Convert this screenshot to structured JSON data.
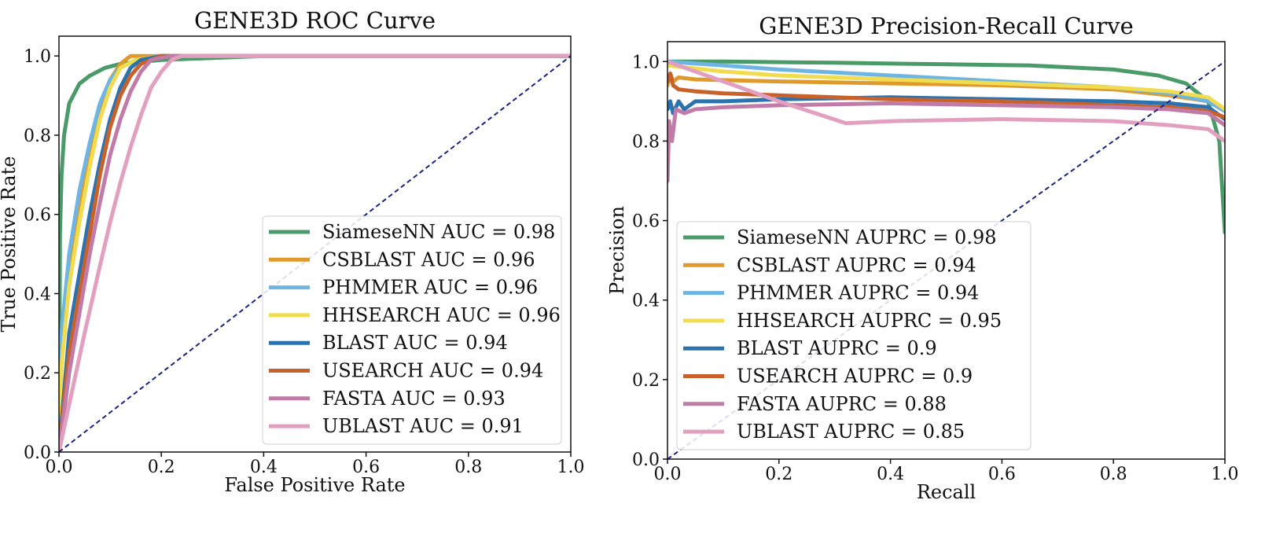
{
  "chart_data": [
    {
      "type": "line",
      "title": "GENE3D ROC Curve",
      "xlabel": "False Positive Rate",
      "ylabel": "True Positive Rate",
      "xlim": [
        0,
        1
      ],
      "ylim": [
        0,
        1.05
      ],
      "xticks": [
        "0.0",
        "0.2",
        "0.4",
        "0.6",
        "0.8",
        "1.0"
      ],
      "yticks": [
        "0.0",
        "0.2",
        "0.4",
        "0.6",
        "0.8",
        "1.0"
      ],
      "grid": false,
      "legend_position": "lower-right",
      "series": [
        {
          "name": "SiameseNN",
          "legend": "SiameseNN AUC = 0.98",
          "color": "#4a9a6a",
          "x": [
            0,
            0.002,
            0.005,
            0.01,
            0.02,
            0.04,
            0.06,
            0.09,
            0.12,
            0.2,
            0.4,
            1.0
          ],
          "y": [
            0,
            0.55,
            0.7,
            0.8,
            0.88,
            0.93,
            0.95,
            0.97,
            0.98,
            0.99,
            1.0,
            1.0
          ]
        },
        {
          "name": "CSBLAST",
          "legend": "CSBLAST AUC = 0.96",
          "color": "#e09a2c",
          "x": [
            0,
            0.005,
            0.02,
            0.04,
            0.06,
            0.08,
            0.1,
            0.12,
            0.14,
            0.2,
            1.0
          ],
          "y": [
            0,
            0.25,
            0.45,
            0.62,
            0.76,
            0.87,
            0.94,
            0.98,
            1.0,
            1.0,
            1.0
          ]
        },
        {
          "name": "PHMMER",
          "legend": "PHMMER AUC = 0.96",
          "color": "#6fb5e4",
          "x": [
            0,
            0.005,
            0.02,
            0.04,
            0.06,
            0.08,
            0.1,
            0.12,
            0.15,
            0.2,
            1.0
          ],
          "y": [
            0,
            0.3,
            0.5,
            0.66,
            0.78,
            0.88,
            0.94,
            0.97,
            0.99,
            1.0,
            1.0
          ]
        },
        {
          "name": "HHSEARCH",
          "legend": "HHSEARCH AUC = 0.96",
          "color": "#f0dc4e",
          "x": [
            0,
            0.005,
            0.02,
            0.04,
            0.06,
            0.08,
            0.1,
            0.12,
            0.15,
            0.2,
            1.0
          ],
          "y": [
            0,
            0.22,
            0.42,
            0.58,
            0.72,
            0.84,
            0.92,
            0.97,
            0.99,
            1.0,
            1.0
          ]
        },
        {
          "name": "BLAST",
          "legend": "BLAST AUC = 0.94",
          "color": "#2b73ae",
          "x": [
            0,
            0.02,
            0.04,
            0.06,
            0.08,
            0.1,
            0.12,
            0.14,
            0.16,
            0.2,
            1.0
          ],
          "y": [
            0,
            0.3,
            0.45,
            0.6,
            0.73,
            0.84,
            0.92,
            0.97,
            0.99,
            1.0,
            1.0
          ]
        },
        {
          "name": "USEARCH",
          "legend": "USEARCH AUC = 0.94",
          "color": "#c9622a",
          "x": [
            0,
            0.02,
            0.04,
            0.06,
            0.08,
            0.1,
            0.12,
            0.14,
            0.16,
            0.2,
            1.0
          ],
          "y": [
            0,
            0.25,
            0.4,
            0.55,
            0.7,
            0.82,
            0.9,
            0.95,
            0.98,
            1.0,
            1.0
          ]
        },
        {
          "name": "FASTA",
          "legend": "FASTA AUC = 0.93",
          "color": "#c07ba8",
          "x": [
            0,
            0.02,
            0.04,
            0.06,
            0.08,
            0.1,
            0.12,
            0.14,
            0.16,
            0.18,
            0.22,
            1.0
          ],
          "y": [
            0,
            0.2,
            0.35,
            0.5,
            0.63,
            0.75,
            0.84,
            0.91,
            0.96,
            0.99,
            1.0,
            1.0
          ]
        },
        {
          "name": "UBLAST",
          "legend": "UBLAST AUC = 0.91",
          "color": "#e39fbf",
          "x": [
            0,
            0.02,
            0.05,
            0.08,
            0.1,
            0.12,
            0.14,
            0.16,
            0.18,
            0.2,
            0.22,
            0.24,
            1.0
          ],
          "y": [
            0,
            0.12,
            0.3,
            0.47,
            0.58,
            0.68,
            0.77,
            0.85,
            0.92,
            0.96,
            0.99,
            1.0,
            1.0
          ]
        }
      ],
      "reference_line": {
        "x": [
          0,
          1
        ],
        "y": [
          0,
          1
        ],
        "color": "#1a237e",
        "style": "dashed"
      }
    },
    {
      "type": "line",
      "title": "GENE3D Precision-Recall Curve",
      "xlabel": "Recall",
      "ylabel": "Precision",
      "xlim": [
        0,
        1
      ],
      "ylim": [
        0,
        1.05
      ],
      "xticks": [
        "0.0",
        "0.2",
        "0.4",
        "0.6",
        "0.8",
        "1.0"
      ],
      "yticks": [
        "0.0",
        "0.2",
        "0.4",
        "0.6",
        "0.8",
        "1.0"
      ],
      "grid": false,
      "legend_position": "lower-left",
      "series": [
        {
          "name": "SiameseNN",
          "legend": "SiameseNN AUPRC = 0.98",
          "color": "#4a9a6a",
          "x": [
            0,
            0.1,
            0.3,
            0.5,
            0.65,
            0.8,
            0.88,
            0.93,
            0.97,
            0.99,
            1.0
          ],
          "y": [
            1.0,
            1.0,
            0.997,
            0.993,
            0.99,
            0.98,
            0.965,
            0.945,
            0.9,
            0.8,
            0.57
          ]
        },
        {
          "name": "CSBLAST",
          "legend": "CSBLAST AUPRC = 0.94",
          "color": "#e09a2c",
          "x": [
            0,
            0.005,
            0.01,
            0.02,
            0.05,
            0.2,
            0.4,
            0.6,
            0.8,
            0.9,
            0.97,
            1.0
          ],
          "y": [
            0.94,
            0.97,
            0.95,
            0.96,
            0.955,
            0.95,
            0.945,
            0.94,
            0.93,
            0.915,
            0.9,
            0.875
          ]
        },
        {
          "name": "PHMMER",
          "legend": "PHMMER AUPRC = 0.94",
          "color": "#6fb5e4",
          "x": [
            0,
            0.1,
            0.2,
            0.4,
            0.6,
            0.8,
            0.9,
            0.97,
            1.0
          ],
          "y": [
            1.0,
            0.99,
            0.98,
            0.965,
            0.95,
            0.935,
            0.92,
            0.9,
            0.875
          ]
        },
        {
          "name": "HHSEARCH",
          "legend": "HHSEARCH AUPRC = 0.95",
          "color": "#f0dc4e",
          "x": [
            0,
            0.1,
            0.2,
            0.4,
            0.6,
            0.8,
            0.9,
            0.97,
            1.0
          ],
          "y": [
            0.99,
            0.975,
            0.965,
            0.955,
            0.945,
            0.935,
            0.925,
            0.91,
            0.88
          ]
        },
        {
          "name": "BLAST",
          "legend": "BLAST AUPRC = 0.9",
          "color": "#2b73ae",
          "x": [
            0,
            0.005,
            0.01,
            0.02,
            0.03,
            0.05,
            0.1,
            0.2,
            0.4,
            0.6,
            0.8,
            0.9,
            0.97,
            1.0
          ],
          "y": [
            0.88,
            0.9,
            0.87,
            0.9,
            0.88,
            0.9,
            0.9,
            0.905,
            0.91,
            0.905,
            0.9,
            0.895,
            0.885,
            0.855
          ]
        },
        {
          "name": "USEARCH",
          "legend": "USEARCH AUPRC = 0.9",
          "color": "#c9622a",
          "x": [
            0,
            0.005,
            0.01,
            0.02,
            0.05,
            0.1,
            0.2,
            0.4,
            0.6,
            0.8,
            0.9,
            0.97,
            1.0
          ],
          "y": [
            0.95,
            0.97,
            0.94,
            0.93,
            0.925,
            0.92,
            0.915,
            0.905,
            0.9,
            0.89,
            0.885,
            0.875,
            0.86
          ]
        },
        {
          "name": "FASTA",
          "legend": "FASTA AUPRC = 0.88",
          "color": "#c07ba8",
          "x": [
            0,
            0.003,
            0.008,
            0.015,
            0.03,
            0.05,
            0.1,
            0.2,
            0.4,
            0.6,
            0.8,
            0.9,
            0.97,
            1.0
          ],
          "y": [
            0.7,
            0.85,
            0.8,
            0.88,
            0.87,
            0.88,
            0.885,
            0.89,
            0.895,
            0.89,
            0.885,
            0.88,
            0.87,
            0.84
          ]
        },
        {
          "name": "UBLAST",
          "legend": "UBLAST AUPRC = 0.85",
          "color": "#e39fbf",
          "x": [
            0,
            0.1,
            0.2,
            0.32,
            0.4,
            0.6,
            0.8,
            0.9,
            0.97,
            1.0
          ],
          "y": [
            1.0,
            0.95,
            0.9,
            0.845,
            0.85,
            0.855,
            0.85,
            0.84,
            0.83,
            0.8
          ]
        }
      ],
      "reference_line": {
        "x": [
          0,
          1
        ],
        "y": [
          0,
          1
        ],
        "color": "#1a237e",
        "style": "dashed"
      }
    }
  ]
}
